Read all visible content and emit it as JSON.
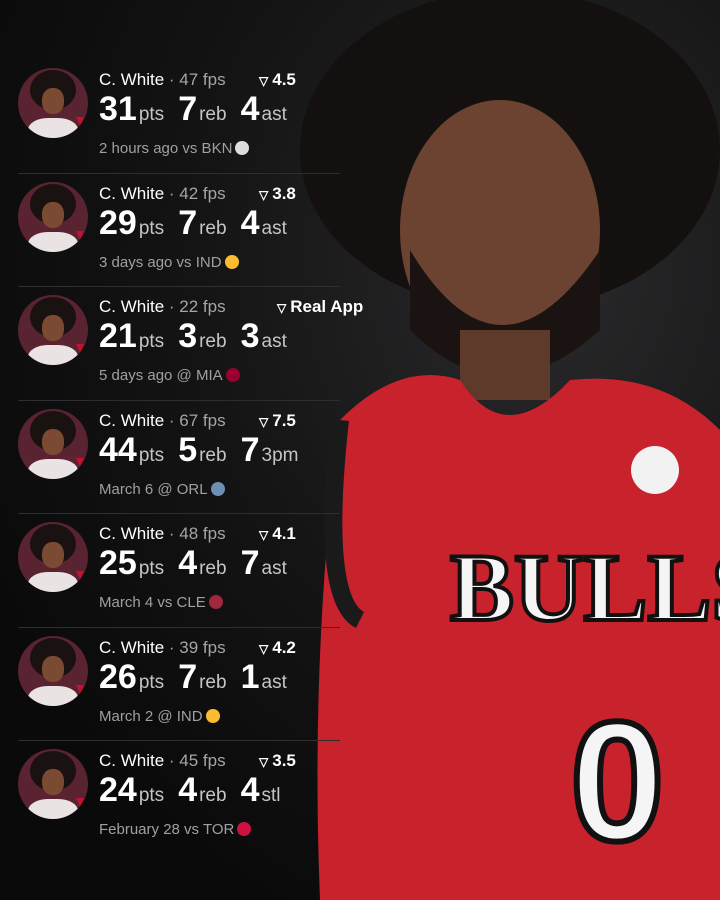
{
  "colors": {
    "accent": "#c8102e",
    "background": "#0b0b0c"
  },
  "jersey": {
    "team_text": "BULLS",
    "number": "0"
  },
  "games": [
    {
      "player": "C. White",
      "fps": "47 fps",
      "score": "4.5",
      "stats": [
        {
          "v": "31",
          "u": "pts"
        },
        {
          "v": "7",
          "u": "reb"
        },
        {
          "v": "4",
          "u": "ast"
        }
      ],
      "when": "2 hours ago vs BKN",
      "team_icon": "nets-logo",
      "team_color": "#dddddd"
    },
    {
      "player": "C. White",
      "fps": "42 fps",
      "score": "3.8",
      "stats": [
        {
          "v": "29",
          "u": "pts"
        },
        {
          "v": "7",
          "u": "reb"
        },
        {
          "v": "4",
          "u": "ast"
        }
      ],
      "when": "3 days ago vs IND",
      "team_icon": "pacers-logo",
      "team_color": "#fdbb30"
    },
    {
      "player": "C. White",
      "fps": "22 fps",
      "score": "Real App",
      "stats": [
        {
          "v": "21",
          "u": "pts"
        },
        {
          "v": "3",
          "u": "reb"
        },
        {
          "v": "3",
          "u": "ast"
        }
      ],
      "when": "5 days ago @ MIA",
      "team_icon": "heat-logo",
      "team_color": "#98002e"
    },
    {
      "player": "C. White",
      "fps": "67 fps",
      "score": "7.5",
      "stats": [
        {
          "v": "44",
          "u": "pts"
        },
        {
          "v": "5",
          "u": "reb"
        },
        {
          "v": "7",
          "u": "3pm"
        }
      ],
      "when": "March 6 @ ORL",
      "team_icon": "magic-logo",
      "team_color": "#6c8fb3"
    },
    {
      "player": "C. White",
      "fps": "48 fps",
      "score": "4.1",
      "stats": [
        {
          "v": "25",
          "u": "pts"
        },
        {
          "v": "4",
          "u": "reb"
        },
        {
          "v": "7",
          "u": "ast"
        }
      ],
      "when": "March 4 vs CLE",
      "team_icon": "cavaliers-logo",
      "team_color": "#a0283e"
    },
    {
      "player": "C. White",
      "fps": "39 fps",
      "score": "4.2",
      "stats": [
        {
          "v": "26",
          "u": "pts"
        },
        {
          "v": "7",
          "u": "reb"
        },
        {
          "v": "1",
          "u": "ast"
        }
      ],
      "when": "March 2 @ IND",
      "team_icon": "pacers-logo",
      "team_color": "#fdbb30"
    },
    {
      "player": "C. White",
      "fps": "45 fps",
      "score": "3.5",
      "stats": [
        {
          "v": "24",
          "u": "pts"
        },
        {
          "v": "4",
          "u": "reb"
        },
        {
          "v": "4",
          "u": "stl"
        }
      ],
      "when": "February 28 vs TOR",
      "team_icon": "raptors-logo",
      "team_color": "#ce1141"
    }
  ]
}
